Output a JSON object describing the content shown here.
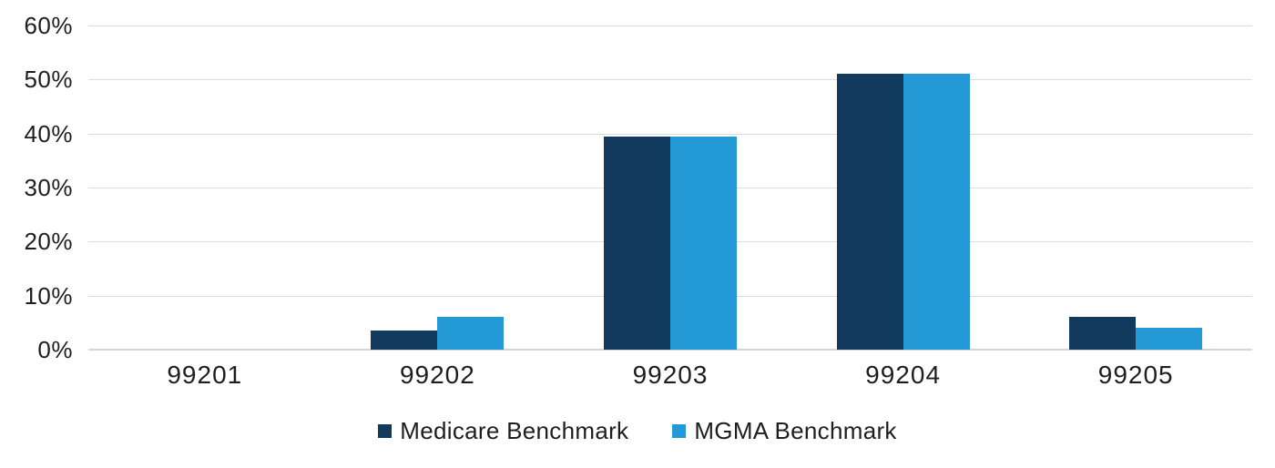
{
  "chart_data": {
    "type": "bar",
    "title": "",
    "categories": [
      "99201",
      "99202",
      "99203",
      "99204",
      "99205"
    ],
    "series": [
      {
        "name": "Medicare Benchmark",
        "color": "#113A5C",
        "values": [
          0,
          3.5,
          39.5,
          51,
          6
        ]
      },
      {
        "name": "MGMA Benchmark",
        "color": "#2399D5",
        "values": [
          0,
          6,
          39.5,
          51,
          4
        ]
      }
    ],
    "xlabel": "",
    "ylabel": "",
    "ylim": [
      0,
      60
    ],
    "ytick_step": 10,
    "yticks": [
      "60%",
      "50%",
      "40%",
      "30%",
      "20%",
      "10%",
      "0%"
    ],
    "grid": true,
    "legend_position": "bottom"
  },
  "colors": {
    "background": "#ffffff",
    "gridline": "#dcdcdc",
    "text": "#1e1e1e",
    "medicare": "#113A5C",
    "mgma": "#2399D5"
  }
}
